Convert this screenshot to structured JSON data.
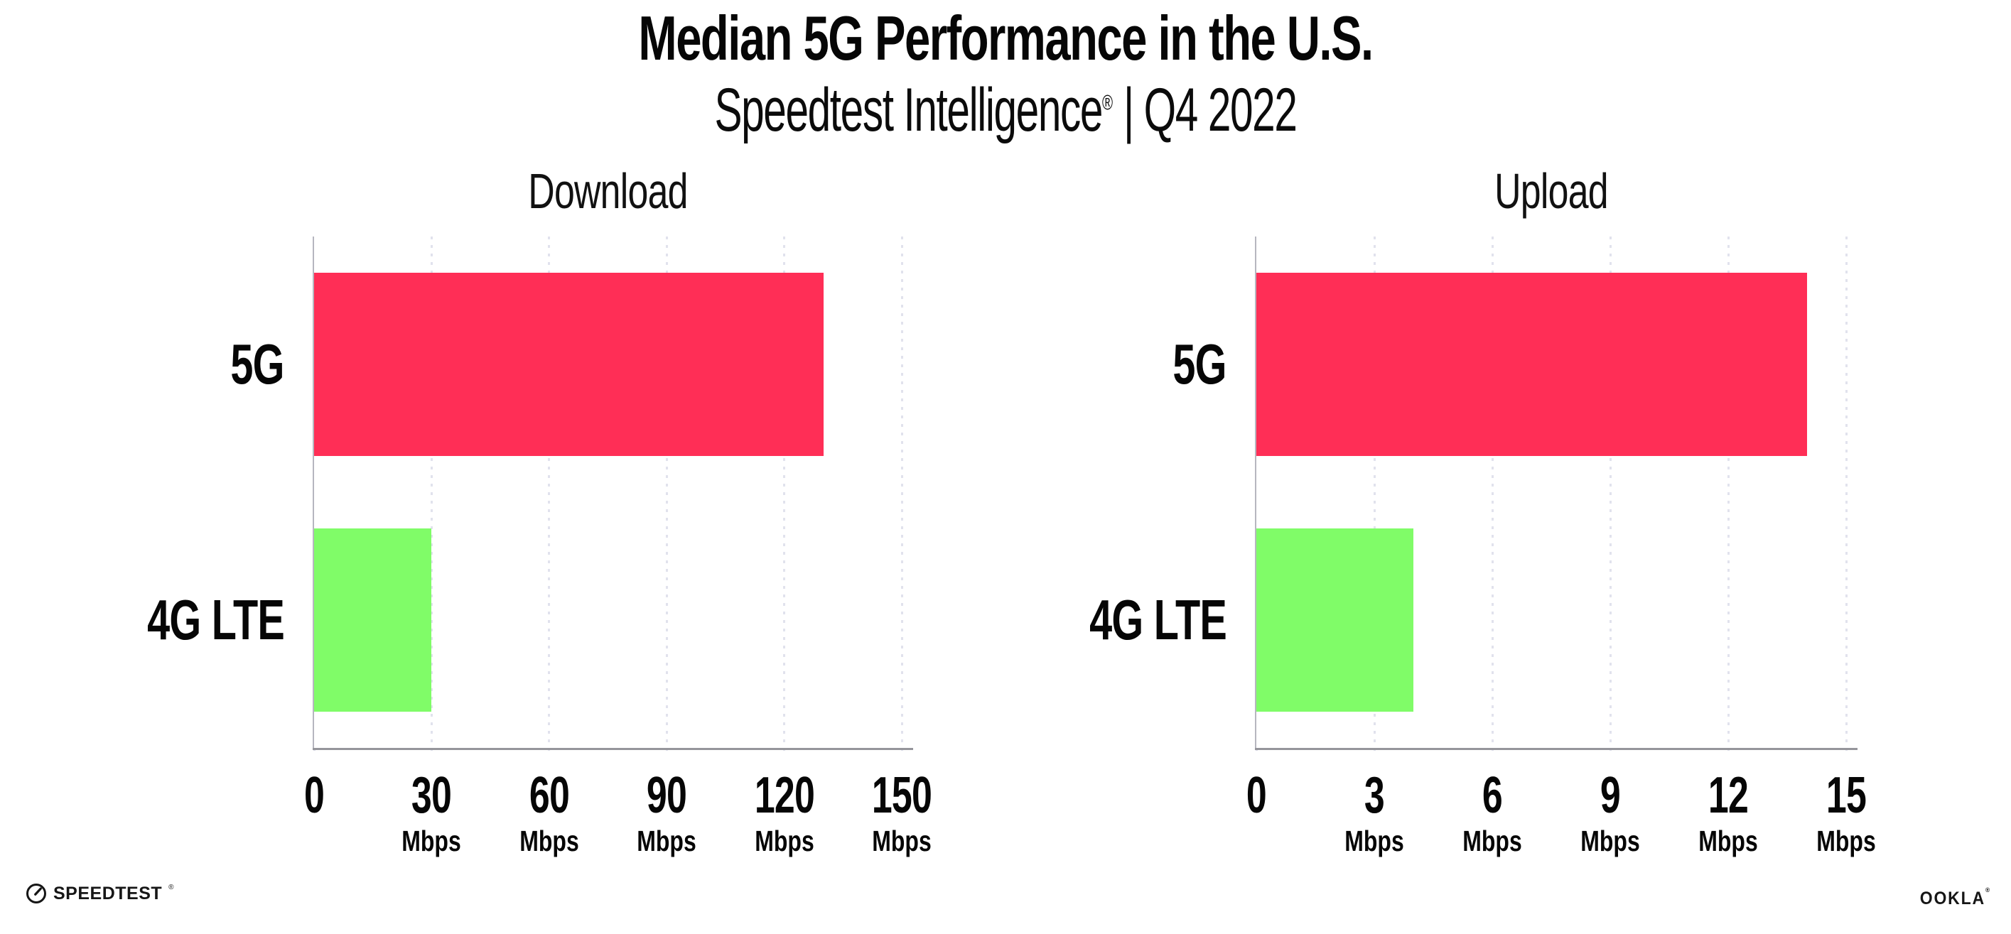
{
  "header": {
    "title": "Median 5G Performance in the U.S.",
    "subtitle_brand": "Speedtest Intelligence",
    "subtitle_registered": "®",
    "subtitle_period": " | Q4 2022"
  },
  "chart_data": [
    {
      "type": "bar",
      "orientation": "horizontal",
      "title": "Download",
      "categories": [
        "5G",
        "4G LTE"
      ],
      "values": [
        130,
        30
      ],
      "value_unit": "Mbps",
      "colors": [
        "#ff2e56",
        "#80fc68"
      ],
      "xlim": [
        0,
        150
      ],
      "xticks": [
        0,
        30,
        60,
        90,
        120,
        150
      ],
      "tick_unit_label": "Mbps",
      "grid": "vertical dotted gridlines at each tick, no top/right spines",
      "legend": "none"
    },
    {
      "type": "bar",
      "orientation": "horizontal",
      "title": "Upload",
      "categories": [
        "5G",
        "4G LTE"
      ],
      "values": [
        14,
        4
      ],
      "value_unit": "Mbps",
      "colors": [
        "#ff2e56",
        "#80fc68"
      ],
      "xlim": [
        0,
        15
      ],
      "xticks": [
        0,
        3,
        6,
        9,
        12,
        15
      ],
      "tick_unit_label": "Mbps",
      "grid": "vertical dotted gridlines at each tick, no top/right spines",
      "legend": "none"
    }
  ],
  "footer": {
    "speedtest_label": "SPEEDTEST",
    "speedtest_mark": "®",
    "speedtest_icon": "gauge-icon",
    "ookla_label": "OOKLA",
    "ookla_mark": "®"
  },
  "colors": {
    "bar_5g": "#ff2e56",
    "bar_4g_lte": "#80fc68",
    "gridline": "#e1e2ed",
    "x_axis": "#95959b",
    "y_axis": "#b6b6bf",
    "text": "#060606",
    "background": "#ffffff"
  }
}
